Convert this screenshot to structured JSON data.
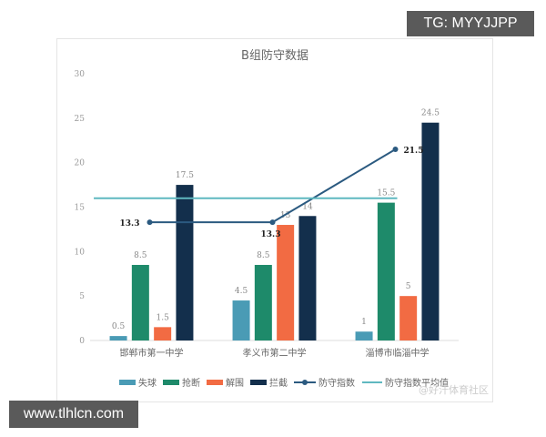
{
  "overlays": {
    "top_right": "TG: MYYJJPP",
    "bottom_left": "www.tlhlcn.com",
    "watermark": "@好汗体育社区"
  },
  "chart_data": {
    "type": "bar",
    "title": "B组防守数据",
    "categories": [
      "邯郸市第一中学",
      "孝义市第二中学",
      "淄博市临淄中学"
    ],
    "ylim": [
      0,
      30
    ],
    "yticks": [
      0,
      5,
      10,
      15,
      20,
      25,
      30
    ],
    "grid": false,
    "legend_position": "bottom",
    "series": [
      {
        "name": "失球",
        "type": "bar",
        "color": "#4a9bb5",
        "values": [
          0.5,
          4.5,
          1
        ]
      },
      {
        "name": "抢断",
        "type": "bar",
        "color": "#1e8a6a",
        "values": [
          8.5,
          8.5,
          15.5
        ]
      },
      {
        "name": "解围",
        "type": "bar",
        "color": "#f26b43",
        "values": [
          1.5,
          13,
          5
        ]
      },
      {
        "name": "拦截",
        "type": "bar",
        "color": "#132f4c",
        "values": [
          17.5,
          14,
          24.5
        ]
      },
      {
        "name": "防守指数",
        "type": "line",
        "color": "#2b5a80",
        "values": [
          13.3,
          13.3,
          21.5
        ]
      },
      {
        "name": "防守指数平均值",
        "type": "line",
        "color": "#5fb8c0",
        "values": [
          16,
          16,
          16
        ]
      }
    ]
  }
}
